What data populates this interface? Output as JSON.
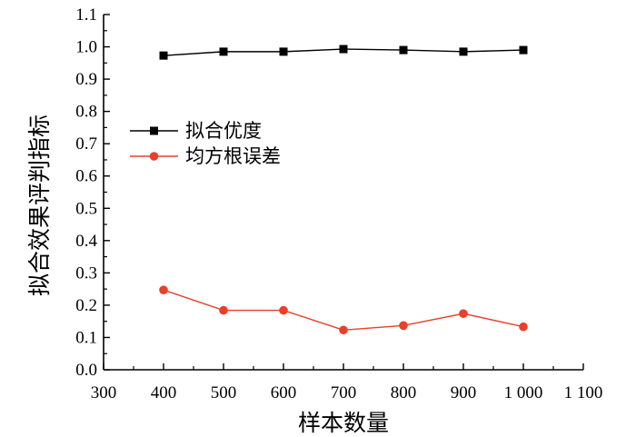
{
  "chart_data": {
    "type": "line",
    "title": "",
    "xlabel": "样本数量",
    "ylabel": "拟合效果评判指标",
    "xlim": [
      300,
      1100
    ],
    "ylim": [
      0.0,
      1.1
    ],
    "x_ticks": [
      300,
      400,
      500,
      600,
      700,
      800,
      900,
      1000,
      1100
    ],
    "x_tick_labels": [
      "300",
      "400",
      "500",
      "600",
      "700",
      "800",
      "900",
      "1 000",
      "1 100"
    ],
    "y_ticks": [
      0.0,
      0.1,
      0.2,
      0.3,
      0.4,
      0.5,
      0.6,
      0.7,
      0.8,
      0.9,
      1.0,
      1.1
    ],
    "y_tick_labels": [
      "0.0",
      "0.1",
      "0.2",
      "0.3",
      "0.4",
      "0.5",
      "0.6",
      "0.7",
      "0.8",
      "0.9",
      "1.0",
      "1.1"
    ],
    "grid": false,
    "legend_position": "upper-left",
    "x": [
      400,
      500,
      600,
      700,
      800,
      900,
      1000
    ],
    "series": [
      {
        "name": "拟合优度",
        "values": [
          0.973,
          0.985,
          0.985,
          0.993,
          0.99,
          0.985,
          0.99
        ],
        "color": "#000000",
        "marker": "square"
      },
      {
        "name": "均方根误差",
        "values": [
          0.247,
          0.184,
          0.184,
          0.123,
          0.137,
          0.174,
          0.133
        ],
        "color": "#e8402a",
        "marker": "circle"
      }
    ]
  }
}
